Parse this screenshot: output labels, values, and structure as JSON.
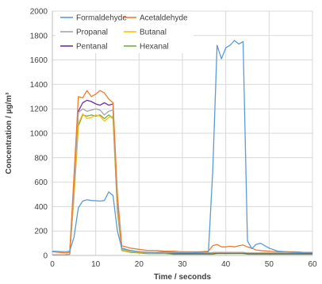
{
  "chart_data": {
    "type": "line",
    "xlabel": "Time / seconds",
    "ylabel": "Concentration / µg/m³",
    "xlim": [
      0,
      60
    ],
    "ylim": [
      0,
      2000
    ],
    "xticks": [
      0,
      10,
      20,
      30,
      40,
      50,
      60
    ],
    "yticks": [
      0,
      200,
      400,
      600,
      800,
      1000,
      1200,
      1400,
      1600,
      1800,
      2000
    ],
    "grid": true,
    "legend_position": "top",
    "x": [
      0,
      3,
      4,
      5,
      6,
      7,
      8,
      9,
      10,
      11,
      12,
      13,
      14,
      15,
      16,
      18,
      20,
      22,
      24,
      26,
      28,
      30,
      32,
      34,
      36,
      37,
      38,
      39,
      40,
      41,
      42,
      43,
      44,
      45,
      46,
      47,
      48,
      50,
      52,
      54,
      56,
      58,
      60
    ],
    "series": [
      {
        "name": "Formaldehyde",
        "color": "#5b9bd5",
        "values": [
          35,
          30,
          35,
          150,
          390,
          445,
          455,
          450,
          448,
          445,
          450,
          520,
          490,
          200,
          60,
          40,
          30,
          25,
          25,
          30,
          25,
          20,
          20,
          25,
          30,
          700,
          1720,
          1610,
          1700,
          1720,
          1760,
          1730,
          1750,
          120,
          55,
          90,
          100,
          60,
          35,
          30,
          25,
          20,
          20
        ]
      },
      {
        "name": "Acetaldehyde",
        "color": "#ed7d31",
        "values": [
          30,
          20,
          25,
          650,
          1300,
          1290,
          1350,
          1300,
          1320,
          1350,
          1330,
          1280,
          1250,
          500,
          80,
          60,
          50,
          40,
          40,
          35,
          35,
          30,
          30,
          30,
          35,
          80,
          90,
          70,
          70,
          75,
          70,
          80,
          85,
          70,
          60,
          45,
          40,
          35,
          30,
          30,
          30,
          25,
          25
        ]
      },
      {
        "name": "Propanal",
        "color": "#a5a5a5",
        "values": [
          5,
          5,
          10,
          550,
          1170,
          1200,
          1180,
          1190,
          1200,
          1190,
          1150,
          1180,
          1190,
          400,
          50,
          40,
          30,
          25,
          20,
          20,
          20,
          20,
          20,
          20,
          20,
          25,
          25,
          25,
          25,
          25,
          25,
          25,
          25,
          20,
          20,
          20,
          20,
          20,
          20,
          20,
          20,
          20,
          20
        ]
      },
      {
        "name": "Butanal",
        "color": "#ffc000",
        "values": [
          5,
          5,
          10,
          500,
          1080,
          1160,
          1120,
          1130,
          1150,
          1140,
          1100,
          1130,
          1140,
          380,
          45,
          30,
          25,
          20,
          20,
          20,
          20,
          20,
          20,
          20,
          20,
          20,
          25,
          25,
          25,
          25,
          25,
          25,
          25,
          20,
          20,
          20,
          20,
          20,
          20,
          20,
          20,
          20,
          20
        ]
      },
      {
        "name": "Pentanal",
        "color": "#7030a0",
        "values": [
          5,
          5,
          10,
          600,
          1180,
          1250,
          1270,
          1260,
          1240,
          1230,
          1250,
          1230,
          1240,
          420,
          50,
          30,
          25,
          20,
          20,
          20,
          15,
          15,
          15,
          15,
          15,
          15,
          20,
          20,
          20,
          20,
          20,
          20,
          20,
          15,
          15,
          15,
          15,
          15,
          15,
          15,
          15,
          15,
          15
        ]
      },
      {
        "name": "Hexanal",
        "color": "#70ad47",
        "values": [
          5,
          5,
          10,
          480,
          1060,
          1150,
          1140,
          1150,
          1140,
          1150,
          1120,
          1150,
          1120,
          360,
          40,
          25,
          20,
          15,
          15,
          15,
          10,
          10,
          10,
          10,
          10,
          10,
          15,
          15,
          15,
          15,
          15,
          15,
          15,
          10,
          10,
          10,
          10,
          10,
          10,
          10,
          10,
          10,
          10
        ]
      }
    ]
  }
}
